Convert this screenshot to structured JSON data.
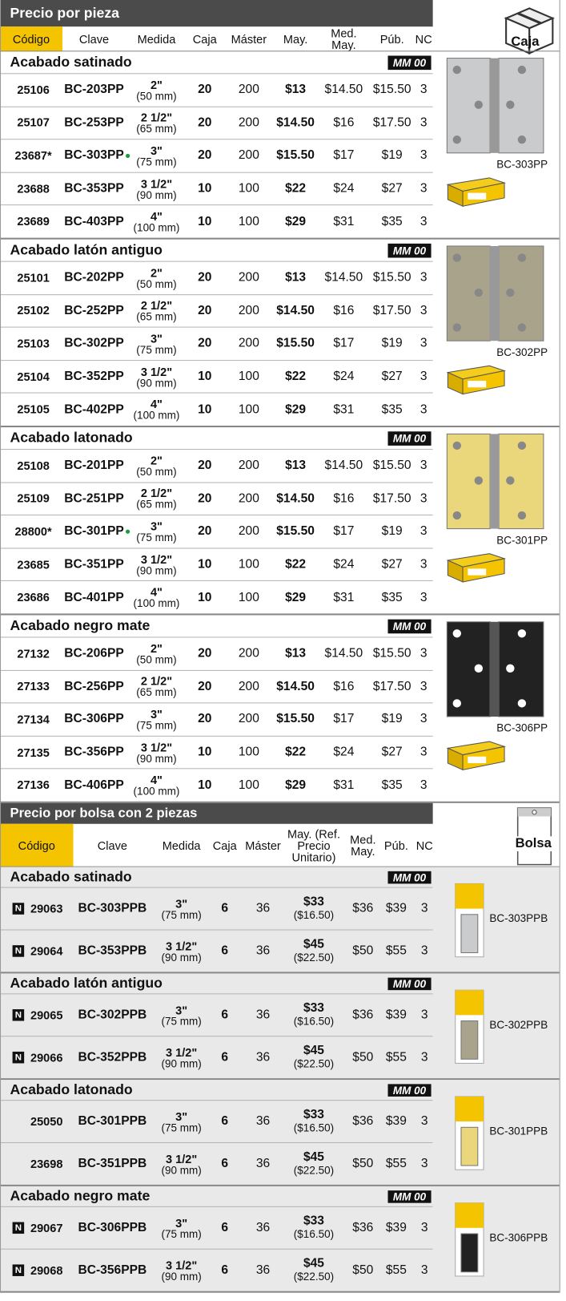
{
  "sections": [
    {
      "title": "Precio por pieza",
      "side_label": "Caja",
      "columns": [
        "Código",
        "Clave",
        "Medida",
        "Caja",
        "Máster",
        "May.",
        "Med. May.",
        "Púb.",
        "NC"
      ],
      "groups": [
        {
          "title": "Acabado satinado",
          "badge": "MM 00",
          "image_label": "BC-303PP",
          "color": "#c9cbcd",
          "rows": [
            {
              "codigo": "25106",
              "clave": "BC-203PP",
              "medida": "2\"",
              "mm": "(50 mm)",
              "caja": 20,
              "master": 200,
              "may": "$13",
              "med_may": "$14.50",
              "pub": "$15.50",
              "nc": 3
            },
            {
              "codigo": "25107",
              "clave": "BC-253PP",
              "medida": "2 1/2\"",
              "mm": "(65 mm)",
              "caja": 20,
              "master": 200,
              "may": "$14.50",
              "med_may": "$16",
              "pub": "$17.50",
              "nc": 3
            },
            {
              "codigo": "23687*",
              "clave": "BC-303PP",
              "dot": true,
              "medida": "3\"",
              "mm": "(75 mm)",
              "caja": 20,
              "master": 200,
              "may": "$15.50",
              "med_may": "$17",
              "pub": "$19",
              "nc": 3
            },
            {
              "codigo": "23688",
              "clave": "BC-353PP",
              "medida": "3 1/2\"",
              "mm": "(90 mm)",
              "caja": 10,
              "master": 100,
              "may": "$22",
              "med_may": "$24",
              "pub": "$27",
              "nc": 3
            },
            {
              "codigo": "23689",
              "clave": "BC-403PP",
              "medida": "4\"",
              "mm": "(100 mm)",
              "caja": 10,
              "master": 100,
              "may": "$29",
              "med_may": "$31",
              "pub": "$35",
              "nc": 3
            }
          ]
        },
        {
          "title": "Acabado latón antiguo",
          "badge": "MM 00",
          "image_label": "BC-302PP",
          "color": "#a9a38c",
          "rows": [
            {
              "codigo": "25101",
              "clave": "BC-202PP",
              "medida": "2\"",
              "mm": "(50 mm)",
              "caja": 20,
              "master": 200,
              "may": "$13",
              "med_may": "$14.50",
              "pub": "$15.50",
              "nc": 3
            },
            {
              "codigo": "25102",
              "clave": "BC-252PP",
              "medida": "2 1/2\"",
              "mm": "(65 mm)",
              "caja": 20,
              "master": 200,
              "may": "$14.50",
              "med_may": "$16",
              "pub": "$17.50",
              "nc": 3
            },
            {
              "codigo": "25103",
              "clave": "BC-302PP",
              "medida": "3\"",
              "mm": "(75 mm)",
              "caja": 20,
              "master": 200,
              "may": "$15.50",
              "med_may": "$17",
              "pub": "$19",
              "nc": 3
            },
            {
              "codigo": "25104",
              "clave": "BC-352PP",
              "medida": "3 1/2\"",
              "mm": "(90 mm)",
              "caja": 10,
              "master": 100,
              "may": "$22",
              "med_may": "$24",
              "pub": "$27",
              "nc": 3
            },
            {
              "codigo": "25105",
              "clave": "BC-402PP",
              "medida": "4\"",
              "mm": "(100 mm)",
              "caja": 10,
              "master": 100,
              "may": "$29",
              "med_may": "$31",
              "pub": "$35",
              "nc": 3
            }
          ]
        },
        {
          "title": "Acabado latonado",
          "badge": "MM 00",
          "image_label": "BC-301PP",
          "color": "#ead77c",
          "rows": [
            {
              "codigo": "25108",
              "clave": "BC-201PP",
              "medida": "2\"",
              "mm": "(50 mm)",
              "caja": 20,
              "master": 200,
              "may": "$13",
              "med_may": "$14.50",
              "pub": "$15.50",
              "nc": 3
            },
            {
              "codigo": "25109",
              "clave": "BC-251PP",
              "medida": "2 1/2\"",
              "mm": "(65 mm)",
              "caja": 20,
              "master": 200,
              "may": "$14.50",
              "med_may": "$16",
              "pub": "$17.50",
              "nc": 3
            },
            {
              "codigo": "28800*",
              "clave": "BC-301PP",
              "dot": true,
              "medida": "3\"",
              "mm": "(75 mm)",
              "caja": 20,
              "master": 200,
              "may": "$15.50",
              "med_may": "$17",
              "pub": "$19",
              "nc": 3
            },
            {
              "codigo": "23685",
              "clave": "BC-351PP",
              "medida": "3 1/2\"",
              "mm": "(90 mm)",
              "caja": 10,
              "master": 100,
              "may": "$22",
              "med_may": "$24",
              "pub": "$27",
              "nc": 3
            },
            {
              "codigo": "23686",
              "clave": "BC-401PP",
              "medida": "4\"",
              "mm": "(100 mm)",
              "caja": 10,
              "master": 100,
              "may": "$29",
              "med_may": "$31",
              "pub": "$35",
              "nc": 3
            }
          ]
        },
        {
          "title": "Acabado negro mate",
          "badge": "MM 00",
          "image_label": "BC-306PP",
          "color": "#222222",
          "rows": [
            {
              "codigo": "27132",
              "clave": "BC-206PP",
              "medida": "2\"",
              "mm": "(50 mm)",
              "caja": 20,
              "master": 200,
              "may": "$13",
              "med_may": "$14.50",
              "pub": "$15.50",
              "nc": 3
            },
            {
              "codigo": "27133",
              "clave": "BC-256PP",
              "medida": "2 1/2\"",
              "mm": "(65 mm)",
              "caja": 20,
              "master": 200,
              "may": "$14.50",
              "med_may": "$16",
              "pub": "$17.50",
              "nc": 3
            },
            {
              "codigo": "27134",
              "clave": "BC-306PP",
              "medida": "3\"",
              "mm": "(75 mm)",
              "caja": 20,
              "master": 200,
              "may": "$15.50",
              "med_may": "$17",
              "pub": "$19",
              "nc": 3
            },
            {
              "codigo": "27135",
              "clave": "BC-356PP",
              "medida": "3 1/2\"",
              "mm": "(90 mm)",
              "caja": 10,
              "master": 100,
              "may": "$22",
              "med_may": "$24",
              "pub": "$27",
              "nc": 3
            },
            {
              "codigo": "27136",
              "clave": "BC-406PP",
              "medida": "4\"",
              "mm": "(100 mm)",
              "caja": 10,
              "master": 100,
              "may": "$29",
              "med_may": "$31",
              "pub": "$35",
              "nc": 3
            }
          ]
        }
      ]
    },
    {
      "title": "Precio por bolsa con 2 piezas",
      "side_label": "Bolsa",
      "columns": [
        "Código",
        "Clave",
        "Medida",
        "Caja",
        "Máster",
        "May. (Ref. Precio Unitario)",
        "Med. May.",
        "Púb.",
        "NC"
      ],
      "groups": [
        {
          "title": "Acabado satinado",
          "badge": "MM 00",
          "image_label": "BC-303PPB",
          "color": "#c9cbcd",
          "rows": [
            {
              "icon": "N",
              "codigo": "29063",
              "clave": "BC-303PPB",
              "medida": "3\"",
              "mm": "(75 mm)",
              "caja": 6,
              "master": 36,
              "may": "$33",
              "may_unit": "($16.50)",
              "med_may": "$36",
              "pub": "$39",
              "nc": 3
            },
            {
              "icon": "N",
              "codigo": "29064",
              "clave": "BC-353PPB",
              "medida": "3 1/2\"",
              "mm": "(90 mm)",
              "caja": 6,
              "master": 36,
              "may": "$45",
              "may_unit": "($22.50)",
              "med_may": "$50",
              "pub": "$55",
              "nc": 3
            }
          ]
        },
        {
          "title": "Acabado latón antiguo",
          "badge": "MM 00",
          "image_label": "BC-302PPB",
          "color": "#a9a38c",
          "rows": [
            {
              "icon": "N",
              "codigo": "29065",
              "clave": "BC-302PPB",
              "medida": "3\"",
              "mm": "(75 mm)",
              "caja": 6,
              "master": 36,
              "may": "$33",
              "may_unit": "($16.50)",
              "med_may": "$36",
              "pub": "$39",
              "nc": 3
            },
            {
              "icon": "N",
              "codigo": "29066",
              "clave": "BC-352PPB",
              "medida": "3 1/2\"",
              "mm": "(90 mm)",
              "caja": 6,
              "master": 36,
              "may": "$45",
              "may_unit": "($22.50)",
              "med_may": "$50",
              "pub": "$55",
              "nc": 3
            }
          ]
        },
        {
          "title": "Acabado latonado",
          "badge": "MM 00",
          "image_label": "BC-301PPB",
          "color": "#ead77c",
          "rows": [
            {
              "codigo": "25050",
              "clave": "BC-301PPB",
              "medida": "3\"",
              "mm": "(75 mm)",
              "caja": 6,
              "master": 36,
              "may": "$33",
              "may_unit": "($16.50)",
              "med_may": "$36",
              "pub": "$39",
              "nc": 3
            },
            {
              "codigo": "23698",
              "clave": "BC-351PPB",
              "medida": "3 1/2\"",
              "mm": "(90 mm)",
              "caja": 6,
              "master": 36,
              "may": "$45",
              "may_unit": "($22.50)",
              "med_may": "$50",
              "pub": "$55",
              "nc": 3
            }
          ]
        },
        {
          "title": "Acabado negro mate",
          "badge": "MM 00",
          "image_label": "BC-306PPB",
          "color": "#222222",
          "rows": [
            {
              "icon": "N",
              "codigo": "29067",
              "clave": "BC-306PPB",
              "medida": "3\"",
              "mm": "(75 mm)",
              "caja": 6,
              "master": 36,
              "may": "$33",
              "may_unit": "($16.50)",
              "med_may": "$36",
              "pub": "$39",
              "nc": 3
            },
            {
              "icon": "N",
              "codigo": "29068",
              "clave": "BC-356PPB",
              "medida": "3 1/2\"",
              "mm": "(90 mm)",
              "caja": 6,
              "master": 36,
              "may": "$45",
              "may_unit": "($22.50)",
              "med_may": "$50",
              "pub": "$55",
              "nc": 3
            }
          ]
        }
      ]
    }
  ]
}
